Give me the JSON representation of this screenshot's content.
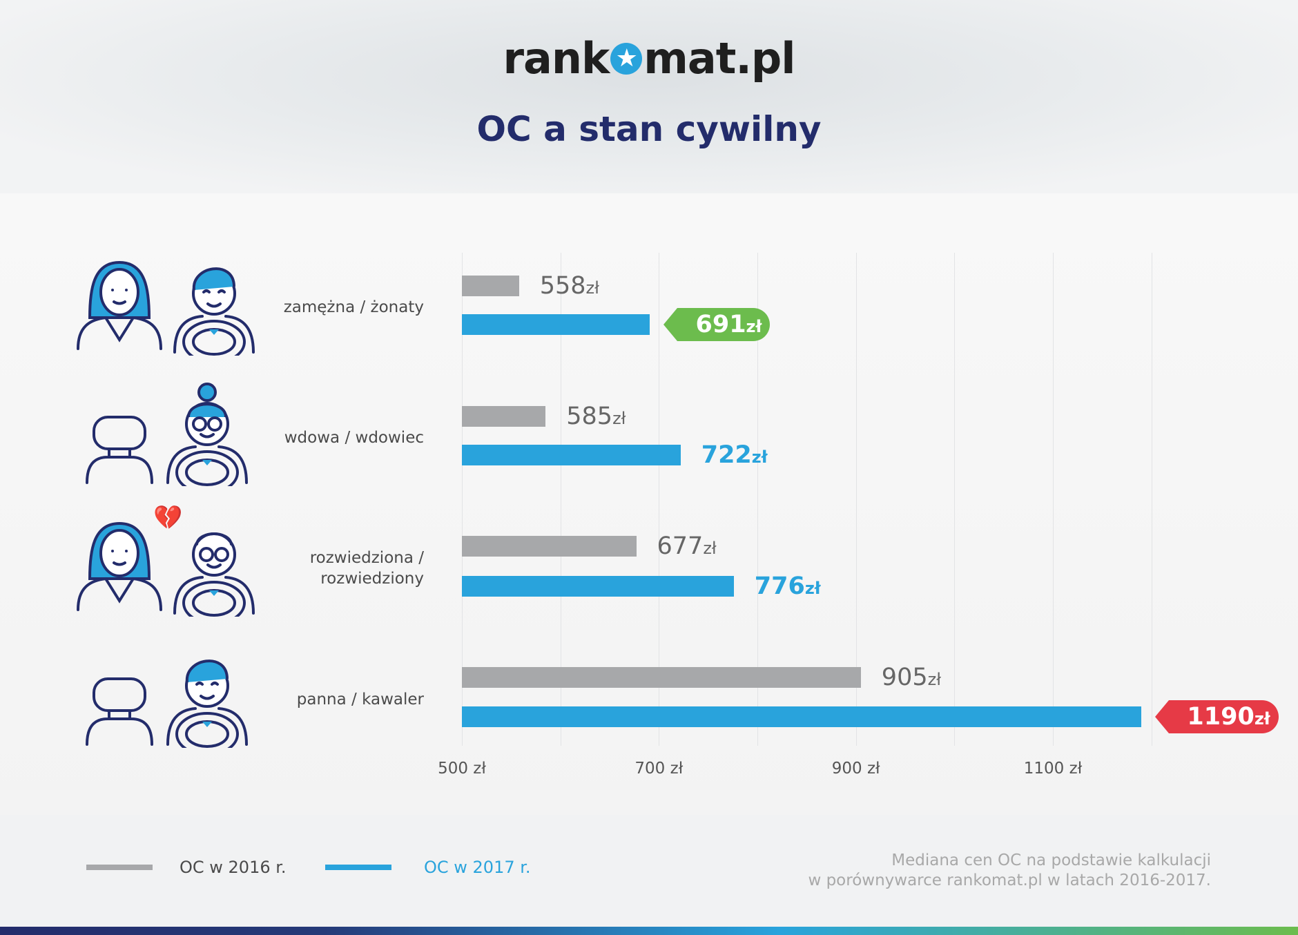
{
  "header": {
    "logo": "rankomat.pl",
    "logo_left": "rank",
    "logo_right": "mat.pl",
    "title": "OC a stan cywilny"
  },
  "chart_data": {
    "type": "bar",
    "orientation": "horizontal",
    "title": "OC a stan cywilny",
    "categories": [
      "zamężna / żonaty",
      "wdowa / wdowiec",
      "rozwiedziona / rozwiedziony",
      "panna / kawaler"
    ],
    "category_lines": [
      [
        "zamężna / żonaty"
      ],
      [
        "wdowa / wdowiec"
      ],
      [
        "rozwiedziona /",
        "rozwiedziony"
      ],
      [
        "panna / kawaler"
      ]
    ],
    "series": [
      {
        "name": "OC w 2016 r.",
        "color": "#a7a8aa",
        "values": [
          558,
          585,
          677,
          905
        ]
      },
      {
        "name": "OC w 2017 r.",
        "color": "#29a3dc",
        "values": [
          691,
          722,
          776,
          1190
        ]
      }
    ],
    "unit": "zł",
    "xlim": [
      500,
      1200
    ],
    "xticks": [
      500,
      700,
      900,
      1100
    ],
    "xtick_labels": [
      "500 zł",
      "700 zł",
      "900 zł",
      "1100 zł"
    ],
    "grid": true,
    "highlights": {
      "min": {
        "value": 691,
        "color": "#6cbc4d"
      },
      "max": {
        "value": 1190,
        "color": "#e63a46"
      }
    },
    "legend_position": "bottom-left"
  },
  "footnote": {
    "line1": "Mediana cen OC na podstawie kalkulacji",
    "line2": "w porównywarce rankomat.pl w latach 2016-2017."
  }
}
